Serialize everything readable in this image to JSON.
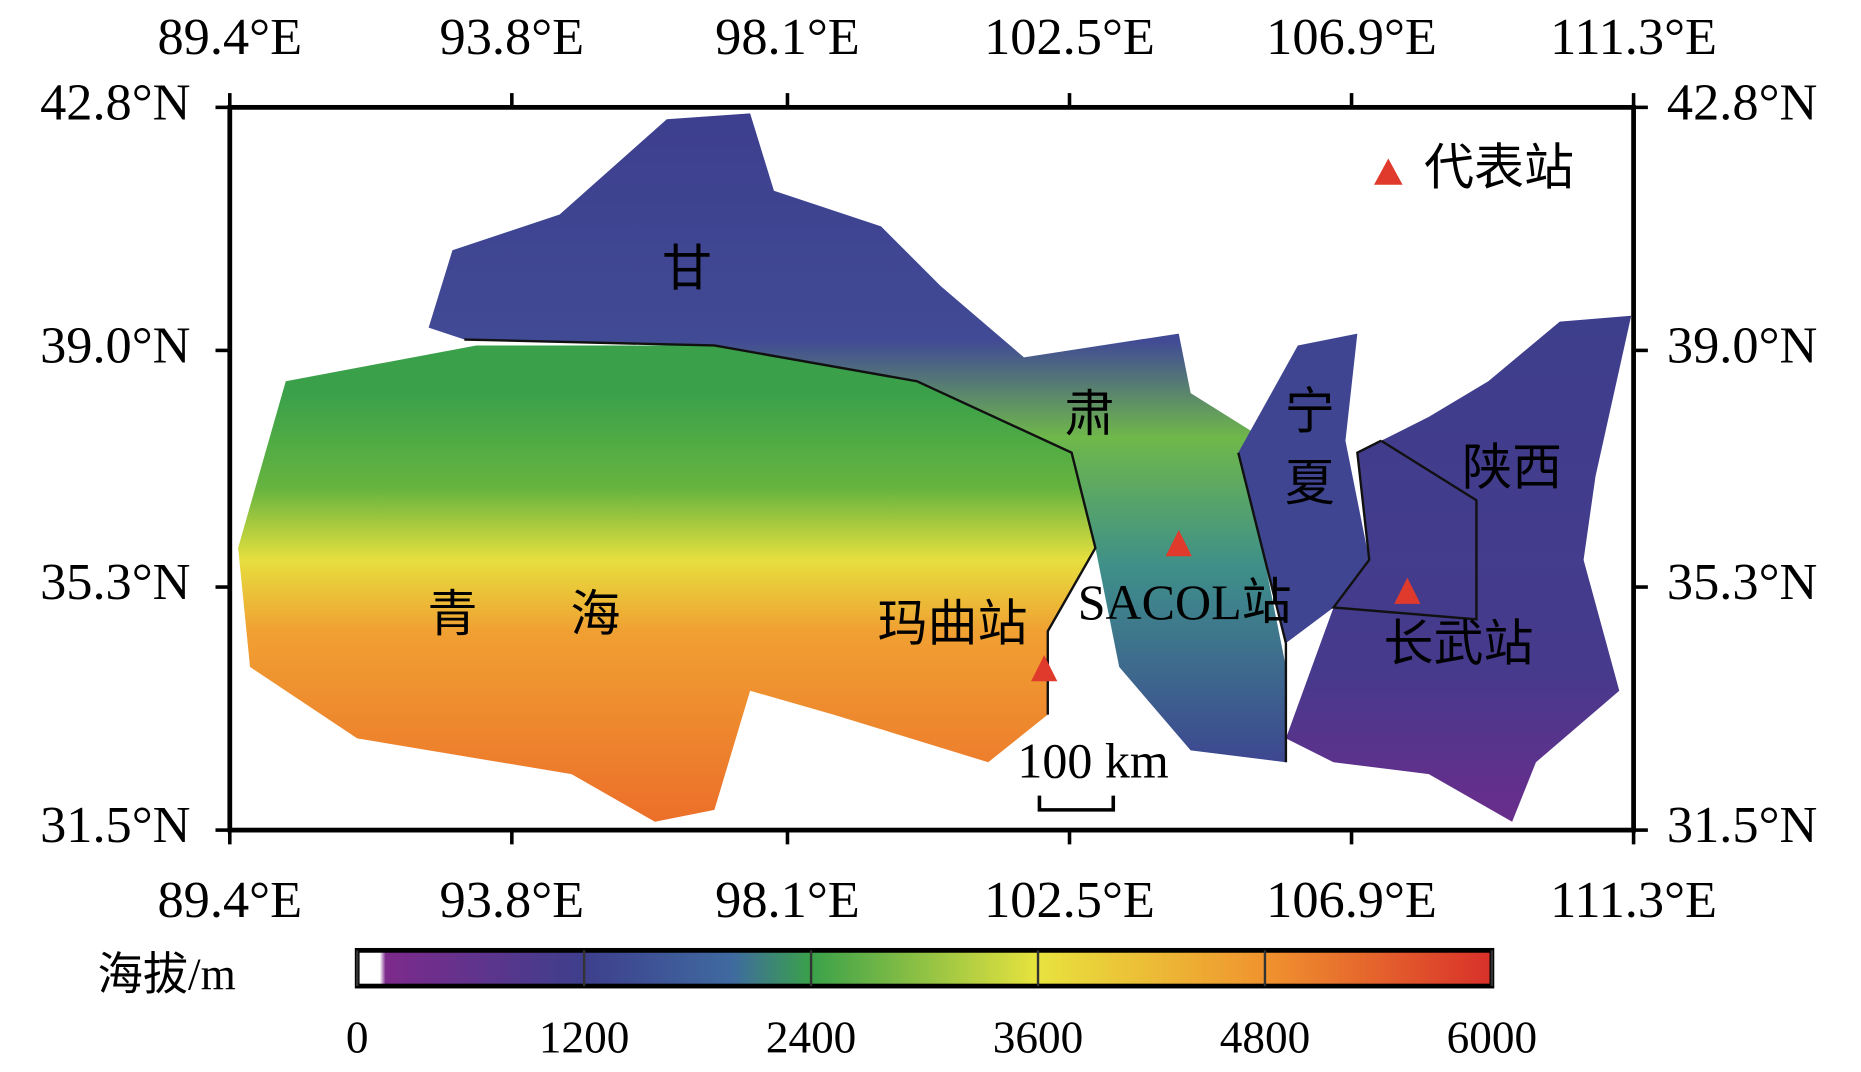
{
  "map": {
    "lon_ticks": [
      {
        "value": 89.4,
        "label": "89.4°E"
      },
      {
        "value": 93.8,
        "label": "93.8°E"
      },
      {
        "value": 98.1,
        "label": "98.1°E"
      },
      {
        "value": 102.5,
        "label": "102.5°E"
      },
      {
        "value": 106.9,
        "label": "106.9°E"
      },
      {
        "value": 111.3,
        "label": "111.3°E"
      }
    ],
    "lat_ticks": [
      {
        "value": 42.8,
        "label": "42.8°N"
      },
      {
        "value": 39.0,
        "label": "39.0°N"
      },
      {
        "value": 35.3,
        "label": "35.3°N"
      },
      {
        "value": 31.5,
        "label": "31.5°N"
      }
    ],
    "region_labels": [
      "甘",
      "肃",
      "宁",
      "夏",
      "陕西",
      "青",
      "海"
    ],
    "stations": [
      "玛曲站",
      "SACOL站",
      "长武站"
    ],
    "legend": "代表站",
    "scale_bar": "100 km",
    "colorbar": {
      "title": "海拔/m",
      "ticks": [
        0,
        1200,
        2400,
        3600,
        4800,
        6000
      ]
    }
  }
}
